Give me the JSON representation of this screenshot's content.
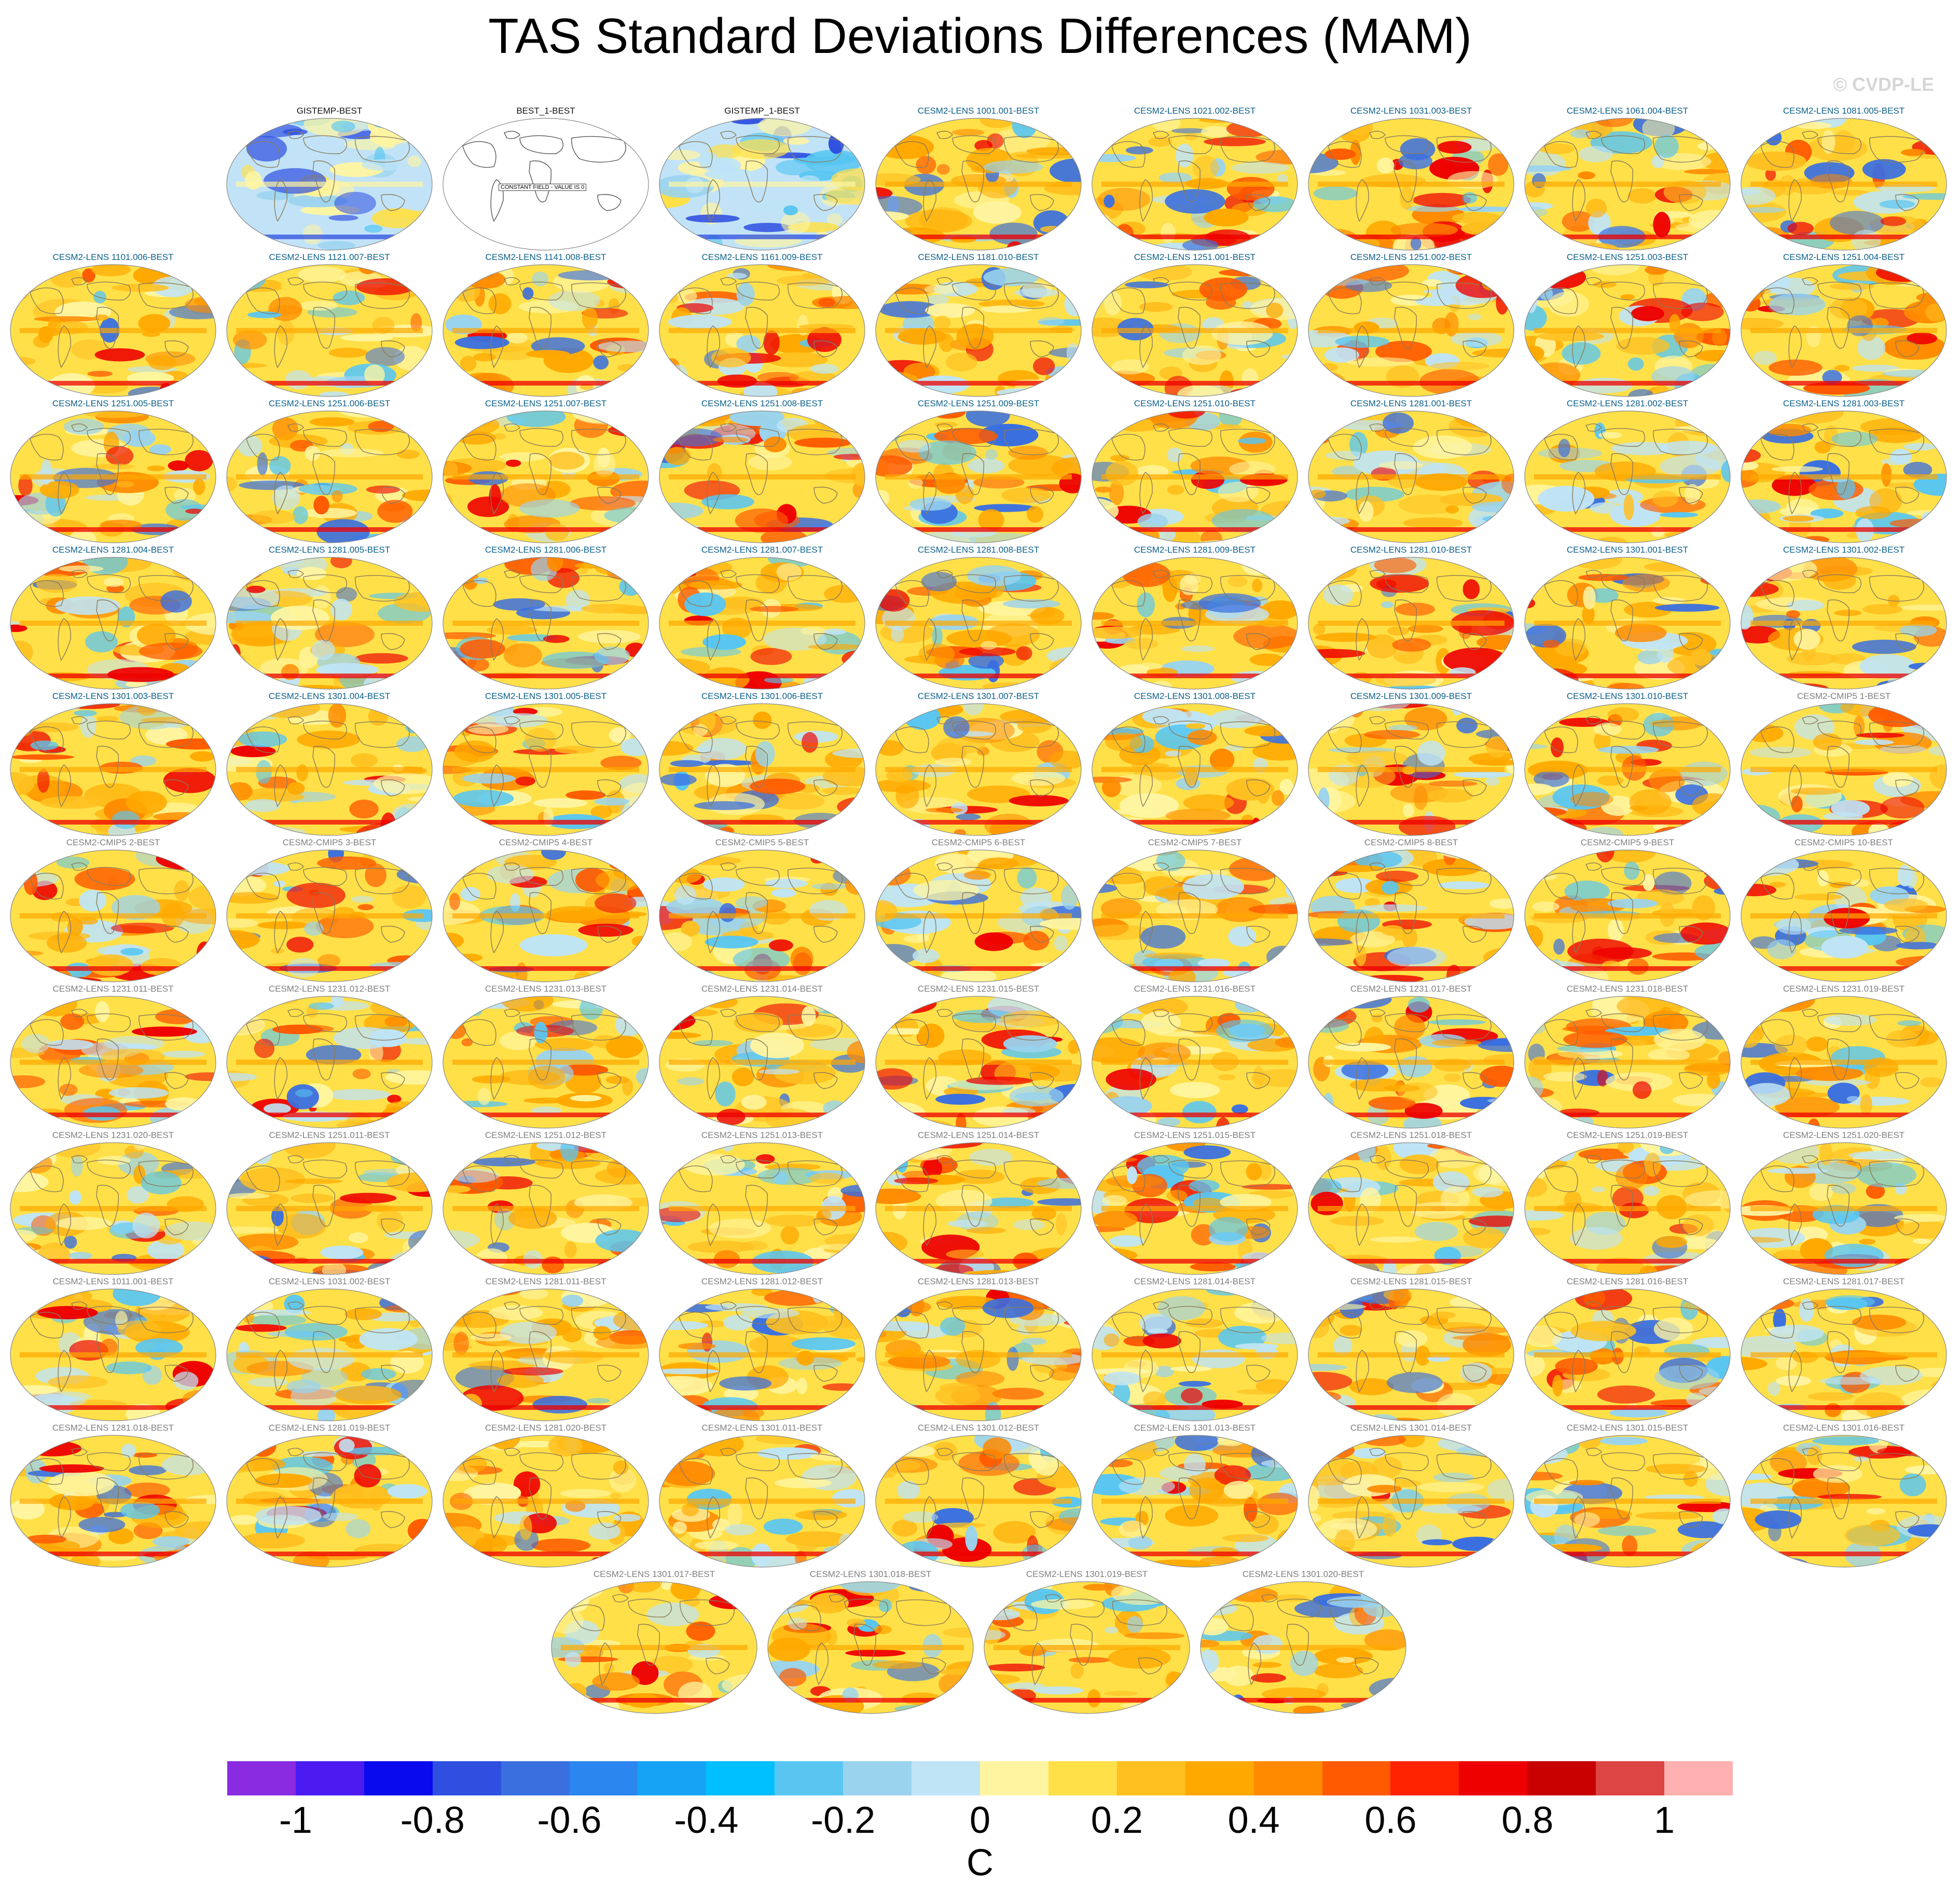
{
  "title": "TAS Standard Deviations Differences (MAM)",
  "watermark": "© CVDP-LE",
  "constant_field_label": "CONSTANT FIELD - VALUE IS 0",
  "colorbar": {
    "unit": "C",
    "tick_labels": [
      "-1",
      "-0.8",
      "-0.6",
      "-0.4",
      "-0.2",
      "0",
      "0.2",
      "0.4",
      "0.6",
      "0.8",
      "1"
    ],
    "colors": [
      "#8a2be2",
      "#4b1bf2",
      "#0a0aee",
      "#2e4fe0",
      "#3a6fe0",
      "#2b86f0",
      "#17a3f5",
      "#00bfff",
      "#59c6f2",
      "#9ad3ee",
      "#bfe4f6",
      "#fff5a0",
      "#ffe048",
      "#ffc020",
      "#ffa800",
      "#ff8a00",
      "#ff5a00",
      "#ff2200",
      "#ee0000",
      "#c80000",
      "#dd4444",
      "#ffb0b0"
    ]
  },
  "panels": [
    {
      "label": "GISTEMP-BEST",
      "color": "dark",
      "style": "obs"
    },
    {
      "label": "BEST_1-BEST",
      "color": "dark",
      "style": "constant"
    },
    {
      "label": "GISTEMP_1-BEST",
      "color": "dark",
      "style": "obs"
    },
    {
      "label": "CESM2-LENS 1001.001-BEST",
      "color": "blue",
      "style": "model"
    },
    {
      "label": "CESM2-LENS 1021.002-BEST",
      "color": "blue",
      "style": "model"
    },
    {
      "label": "CESM2-LENS 1031.003-BEST",
      "color": "blue",
      "style": "model"
    },
    {
      "label": "CESM2-LENS 1061.004-BEST",
      "color": "blue",
      "style": "model"
    },
    {
      "label": "CESM2-LENS 1081.005-BEST",
      "color": "blue",
      "style": "model"
    },
    {
      "label": "CESM2-LENS 1101.006-BEST",
      "color": "blue",
      "style": "model"
    },
    {
      "label": "CESM2-LENS 1121.007-BEST",
      "color": "blue",
      "style": "model"
    },
    {
      "label": "CESM2-LENS 1141.008-BEST",
      "color": "blue",
      "style": "model"
    },
    {
      "label": "CESM2-LENS 1161.009-BEST",
      "color": "blue",
      "style": "model"
    },
    {
      "label": "CESM2-LENS 1181.010-BEST",
      "color": "blue",
      "style": "model"
    },
    {
      "label": "CESM2-LENS 1251.001-BEST",
      "color": "blue",
      "style": "model"
    },
    {
      "label": "CESM2-LENS 1251.002-BEST",
      "color": "blue",
      "style": "model"
    },
    {
      "label": "CESM2-LENS 1251.003-BEST",
      "color": "blue",
      "style": "model"
    },
    {
      "label": "CESM2-LENS 1251.004-BEST",
      "color": "blue",
      "style": "model"
    },
    {
      "label": "CESM2-LENS 1251.005-BEST",
      "color": "blue",
      "style": "model"
    },
    {
      "label": "CESM2-LENS 1251.006-BEST",
      "color": "blue",
      "style": "model"
    },
    {
      "label": "CESM2-LENS 1251.007-BEST",
      "color": "blue",
      "style": "model"
    },
    {
      "label": "CESM2-LENS 1251.008-BEST",
      "color": "blue",
      "style": "model"
    },
    {
      "label": "CESM2-LENS 1251.009-BEST",
      "color": "blue",
      "style": "model"
    },
    {
      "label": "CESM2-LENS 1251.010-BEST",
      "color": "blue",
      "style": "model"
    },
    {
      "label": "CESM2-LENS 1281.001-BEST",
      "color": "blue",
      "style": "model"
    },
    {
      "label": "CESM2-LENS 1281.002-BEST",
      "color": "blue",
      "style": "model"
    },
    {
      "label": "CESM2-LENS 1281.003-BEST",
      "color": "blue",
      "style": "model"
    },
    {
      "label": "CESM2-LENS 1281.004-BEST",
      "color": "blue",
      "style": "model"
    },
    {
      "label": "CESM2-LENS 1281.005-BEST",
      "color": "blue",
      "style": "model"
    },
    {
      "label": "CESM2-LENS 1281.006-BEST",
      "color": "blue",
      "style": "model"
    },
    {
      "label": "CESM2-LENS 1281.007-BEST",
      "color": "blue",
      "style": "model"
    },
    {
      "label": "CESM2-LENS 1281.008-BEST",
      "color": "blue",
      "style": "model"
    },
    {
      "label": "CESM2-LENS 1281.009-BEST",
      "color": "blue",
      "style": "model"
    },
    {
      "label": "CESM2-LENS 1281.010-BEST",
      "color": "blue",
      "style": "model"
    },
    {
      "label": "CESM2-LENS 1301.001-BEST",
      "color": "blue",
      "style": "model"
    },
    {
      "label": "CESM2-LENS 1301.002-BEST",
      "color": "blue",
      "style": "model"
    },
    {
      "label": "CESM2-LENS 1301.003-BEST",
      "color": "blue",
      "style": "model"
    },
    {
      "label": "CESM2-LENS 1301.004-BEST",
      "color": "blue",
      "style": "model"
    },
    {
      "label": "CESM2-LENS 1301.005-BEST",
      "color": "blue",
      "style": "model"
    },
    {
      "label": "CESM2-LENS 1301.006-BEST",
      "color": "blue",
      "style": "model"
    },
    {
      "label": "CESM2-LENS 1301.007-BEST",
      "color": "blue",
      "style": "model"
    },
    {
      "label": "CESM2-LENS 1301.008-BEST",
      "color": "blue",
      "style": "model"
    },
    {
      "label": "CESM2-LENS 1301.009-BEST",
      "color": "blue",
      "style": "model"
    },
    {
      "label": "CESM2-LENS 1301.010-BEST",
      "color": "blue",
      "style": "model"
    },
    {
      "label": "CESM2-CMIP5 1-BEST",
      "color": "gray",
      "style": "model"
    },
    {
      "label": "CESM2-CMIP5 2-BEST",
      "color": "gray",
      "style": "model"
    },
    {
      "label": "CESM2-CMIP5 3-BEST",
      "color": "gray",
      "style": "model"
    },
    {
      "label": "CESM2-CMIP5 4-BEST",
      "color": "gray",
      "style": "model"
    },
    {
      "label": "CESM2-CMIP5 5-BEST",
      "color": "gray",
      "style": "model"
    },
    {
      "label": "CESM2-CMIP5 6-BEST",
      "color": "gray",
      "style": "model"
    },
    {
      "label": "CESM2-CMIP5 7-BEST",
      "color": "gray",
      "style": "model"
    },
    {
      "label": "CESM2-CMIP5 8-BEST",
      "color": "gray",
      "style": "model"
    },
    {
      "label": "CESM2-CMIP5 9-BEST",
      "color": "gray",
      "style": "model"
    },
    {
      "label": "CESM2-CMIP5 10-BEST",
      "color": "gray",
      "style": "model"
    },
    {
      "label": "CESM2-LENS 1231.011-BEST",
      "color": "gray",
      "style": "model"
    },
    {
      "label": "CESM2-LENS 1231.012-BEST",
      "color": "gray",
      "style": "model"
    },
    {
      "label": "CESM2-LENS 1231.013-BEST",
      "color": "gray",
      "style": "model"
    },
    {
      "label": "CESM2-LENS 1231.014-BEST",
      "color": "gray",
      "style": "model"
    },
    {
      "label": "CESM2-LENS 1231.015-BEST",
      "color": "gray",
      "style": "model"
    },
    {
      "label": "CESM2-LENS 1231.016-BEST",
      "color": "gray",
      "style": "model"
    },
    {
      "label": "CESM2-LENS 1231.017-BEST",
      "color": "gray",
      "style": "model"
    },
    {
      "label": "CESM2-LENS 1231.018-BEST",
      "color": "gray",
      "style": "model"
    },
    {
      "label": "CESM2-LENS 1231.019-BEST",
      "color": "gray",
      "style": "model"
    },
    {
      "label": "CESM2-LENS 1231.020-BEST",
      "color": "gray",
      "style": "model"
    },
    {
      "label": "CESM2-LENS 1251.011-BEST",
      "color": "gray",
      "style": "model"
    },
    {
      "label": "CESM2-LENS 1251.012-BEST",
      "color": "gray",
      "style": "model"
    },
    {
      "label": "CESM2-LENS 1251.013-BEST",
      "color": "gray",
      "style": "model"
    },
    {
      "label": "CESM2-LENS 1251.014-BEST",
      "color": "gray",
      "style": "model"
    },
    {
      "label": "CESM2-LENS 1251.015-BEST",
      "color": "gray",
      "style": "model"
    },
    {
      "label": "CESM2-LENS 1251.018-BEST",
      "color": "gray",
      "style": "model"
    },
    {
      "label": "CESM2-LENS 1251.019-BEST",
      "color": "gray",
      "style": "model"
    },
    {
      "label": "CESM2-LENS 1251.020-BEST",
      "color": "gray",
      "style": "model"
    },
    {
      "label": "CESM2-LENS 1011.001-BEST",
      "color": "gray",
      "style": "model"
    },
    {
      "label": "CESM2-LENS 1031.002-BEST",
      "color": "gray",
      "style": "model"
    },
    {
      "label": "CESM2-LENS 1281.011-BEST",
      "color": "gray",
      "style": "model"
    },
    {
      "label": "CESM2-LENS 1281.012-BEST",
      "color": "gray",
      "style": "model"
    },
    {
      "label": "CESM2-LENS 1281.013-BEST",
      "color": "gray",
      "style": "model"
    },
    {
      "label": "CESM2-LENS 1281.014-BEST",
      "color": "gray",
      "style": "model"
    },
    {
      "label": "CESM2-LENS 1281.015-BEST",
      "color": "gray",
      "style": "model"
    },
    {
      "label": "CESM2-LENS 1281.016-BEST",
      "color": "gray",
      "style": "model"
    },
    {
      "label": "CESM2-LENS 1281.017-BEST",
      "color": "gray",
      "style": "model"
    },
    {
      "label": "CESM2-LENS 1281.018-BEST",
      "color": "gray",
      "style": "model"
    },
    {
      "label": "CESM2-LENS 1281.019-BEST",
      "color": "gray",
      "style": "model"
    },
    {
      "label": "CESM2-LENS 1281.020-BEST",
      "color": "gray",
      "style": "model"
    },
    {
      "label": "CESM2-LENS 1301.011-BEST",
      "color": "gray",
      "style": "model"
    },
    {
      "label": "CESM2-LENS 1301.012-BEST",
      "color": "gray",
      "style": "model"
    },
    {
      "label": "CESM2-LENS 1301.013-BEST",
      "color": "gray",
      "style": "model"
    },
    {
      "label": "CESM2-LENS 1301.014-BEST",
      "color": "gray",
      "style": "model"
    },
    {
      "label": "CESM2-LENS 1301.015-BEST",
      "color": "gray",
      "style": "model"
    },
    {
      "label": "CESM2-LENS 1301.016-BEST",
      "color": "gray",
      "style": "model"
    },
    {
      "label": "CESM2-LENS 1301.017-BEST",
      "color": "gray",
      "style": "model"
    },
    {
      "label": "CESM2-LENS 1301.018-BEST",
      "color": "gray",
      "style": "model"
    },
    {
      "label": "CESM2-LENS 1301.019-BEST",
      "color": "gray",
      "style": "model"
    },
    {
      "label": "CESM2-LENS 1301.020-BEST",
      "color": "gray",
      "style": "model"
    }
  ]
}
